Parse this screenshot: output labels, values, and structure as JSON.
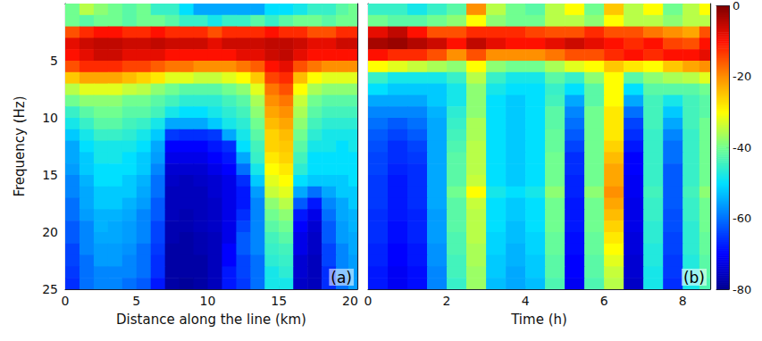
{
  "chart_data": [
    {
      "type": "heatmap",
      "panel_label": "(a)",
      "xlabel": "Distance along the line (km)",
      "ylabel": "Frequency (Hz)",
      "xlim": [
        0,
        20.5
      ],
      "xticks": [
        0,
        5,
        10,
        15,
        20
      ],
      "ylim": [
        0,
        25
      ],
      "yticks": [
        5,
        10,
        15,
        20,
        25
      ],
      "x": [
        0.5,
        1.5,
        2.5,
        3.5,
        4.5,
        5.5,
        6.5,
        7.5,
        8.5,
        9.5,
        10.5,
        11.5,
        12.5,
        13.5,
        14.5,
        15.5,
        16.5,
        17.5,
        18.5,
        19.5,
        20.25
      ],
      "y": [
        0.5,
        1.5,
        2.5,
        3.5,
        4.5,
        5.5,
        6.5,
        7.5,
        8.5,
        9.5,
        10.5,
        11.5,
        12.5,
        13.5,
        14.5,
        15.5,
        16.5,
        17.5,
        18.5,
        19.5,
        20.5,
        21.5,
        22.5,
        23.5,
        24.5
      ],
      "z": [
        [
          -40,
          -35,
          -38,
          -40,
          -42,
          -40,
          -45,
          -45,
          -50,
          -55,
          -55,
          -55,
          -55,
          -55,
          -50,
          -50,
          -48,
          -45,
          -45,
          -42,
          -40
        ],
        [
          -40,
          -42,
          -40,
          -40,
          -42,
          -40,
          -40,
          -42,
          -45,
          -45,
          -48,
          -45,
          -45,
          -42,
          -45,
          -42,
          -40,
          -40,
          -42,
          -40,
          -40
        ],
        [
          -15,
          -12,
          -10,
          -10,
          -12,
          -12,
          -10,
          -12,
          -12,
          -12,
          -15,
          -12,
          -12,
          -12,
          -10,
          -12,
          -12,
          -15,
          -15,
          -12,
          -12
        ],
        [
          -8,
          -6,
          -5,
          -5,
          -6,
          -6,
          -5,
          -6,
          -6,
          -6,
          -8,
          -6,
          -6,
          -6,
          -5,
          -5,
          -6,
          -8,
          -8,
          -6,
          -6
        ],
        [
          -10,
          -8,
          -6,
          -6,
          -8,
          -8,
          -8,
          -10,
          -10,
          -10,
          -10,
          -10,
          -8,
          -8,
          -6,
          -5,
          -8,
          -10,
          -10,
          -10,
          -10
        ],
        [
          -15,
          -12,
          -12,
          -12,
          -14,
          -14,
          -16,
          -18,
          -18,
          -20,
          -20,
          -20,
          -18,
          -16,
          -10,
          -8,
          -15,
          -18,
          -20,
          -20,
          -20
        ],
        [
          -25,
          -22,
          -22,
          -22,
          -24,
          -26,
          -28,
          -32,
          -32,
          -34,
          -34,
          -32,
          -30,
          -25,
          -14,
          -12,
          -24,
          -30,
          -32,
          -32,
          -32
        ],
        [
          -35,
          -32,
          -32,
          -32,
          -34,
          -35,
          -38,
          -40,
          -42,
          -42,
          -42,
          -40,
          -38,
          -32,
          -18,
          -15,
          -30,
          -36,
          -38,
          -38,
          -38
        ],
        [
          -40,
          -38,
          -38,
          -38,
          -40,
          -40,
          -42,
          -44,
          -46,
          -46,
          -46,
          -44,
          -42,
          -36,
          -20,
          -18,
          -34,
          -40,
          -42,
          -42,
          -42
        ],
        [
          -45,
          -42,
          -40,
          -40,
          -42,
          -42,
          -44,
          -48,
          -50,
          -50,
          -48,
          -46,
          -44,
          -38,
          -22,
          -20,
          -36,
          -42,
          -44,
          -44,
          -44
        ],
        [
          -48,
          -45,
          -42,
          -42,
          -44,
          -45,
          -48,
          -55,
          -55,
          -55,
          -52,
          -48,
          -46,
          -40,
          -24,
          -22,
          -38,
          -44,
          -46,
          -46,
          -46
        ],
        [
          -52,
          -48,
          -45,
          -45,
          -46,
          -48,
          -52,
          -65,
          -66,
          -66,
          -65,
          -55,
          -48,
          -42,
          -26,
          -24,
          -40,
          -46,
          -48,
          -48,
          -48
        ],
        [
          -55,
          -50,
          -48,
          -48,
          -48,
          -50,
          -55,
          -70,
          -70,
          -70,
          -68,
          -66,
          -50,
          -44,
          -26,
          -25,
          -42,
          -48,
          -48,
          -50,
          -48
        ],
        [
          -55,
          -52,
          -48,
          -48,
          -50,
          -52,
          -56,
          -72,
          -72,
          -72,
          -70,
          -68,
          -55,
          -45,
          -28,
          -26,
          -44,
          -50,
          -50,
          -50,
          -50
        ],
        [
          -56,
          -52,
          -50,
          -50,
          -50,
          -52,
          -58,
          -74,
          -74,
          -74,
          -72,
          -70,
          -60,
          -48,
          -30,
          -28,
          -46,
          -50,
          -50,
          -50,
          -50
        ],
        [
          -58,
          -54,
          -50,
          -50,
          -52,
          -54,
          -60,
          -75,
          -76,
          -75,
          -74,
          -72,
          -66,
          -52,
          -32,
          -30,
          -50,
          -52,
          -52,
          -52,
          -50
        ],
        [
          -58,
          -55,
          -52,
          -52,
          -52,
          -55,
          -60,
          -76,
          -76,
          -76,
          -74,
          -72,
          -68,
          -56,
          -34,
          -32,
          -55,
          -60,
          -55,
          -52,
          -52
        ],
        [
          -60,
          -55,
          -52,
          -52,
          -54,
          -56,
          -62,
          -76,
          -76,
          -76,
          -75,
          -72,
          -68,
          -58,
          -38,
          -35,
          -62,
          -68,
          -58,
          -55,
          -52
        ],
        [
          -60,
          -56,
          -54,
          -54,
          -55,
          -58,
          -62,
          -76,
          -77,
          -76,
          -75,
          -72,
          -66,
          -58,
          -40,
          -38,
          -68,
          -72,
          -60,
          -55,
          -54
        ],
        [
          -62,
          -58,
          -54,
          -55,
          -56,
          -58,
          -64,
          -77,
          -77,
          -76,
          -75,
          -72,
          -64,
          -58,
          -42,
          -40,
          -70,
          -74,
          -62,
          -56,
          -54
        ],
        [
          -62,
          -58,
          -55,
          -55,
          -56,
          -58,
          -64,
          -77,
          -78,
          -77,
          -76,
          -72,
          -62,
          -58,
          -44,
          -42,
          -72,
          -75,
          -62,
          -56,
          -55
        ],
        [
          -64,
          -58,
          -56,
          -56,
          -57,
          -60,
          -65,
          -78,
          -78,
          -77,
          -76,
          -70,
          -62,
          -58,
          -45,
          -44,
          -72,
          -75,
          -64,
          -58,
          -55
        ],
        [
          -64,
          -60,
          -56,
          -56,
          -58,
          -60,
          -66,
          -78,
          -78,
          -78,
          -76,
          -70,
          -64,
          -60,
          -46,
          -45,
          -74,
          -76,
          -64,
          -58,
          -56
        ],
        [
          -65,
          -60,
          -58,
          -58,
          -58,
          -60,
          -66,
          -78,
          -78,
          -78,
          -76,
          -68,
          -64,
          -60,
          -48,
          -46,
          -74,
          -76,
          -66,
          -58,
          -56
        ],
        [
          -66,
          -60,
          -58,
          -58,
          -60,
          -62,
          -68,
          -78,
          -79,
          -78,
          -76,
          -68,
          -65,
          -60,
          -48,
          -48,
          -75,
          -76,
          -66,
          -60,
          -56
        ]
      ]
    },
    {
      "type": "heatmap",
      "panel_label": "(b)",
      "xlabel": "Time (h)",
      "tick_labels": "x",
      "xlim": [
        0,
        8.7
      ],
      "xticks": [
        0,
        2,
        4,
        6,
        8
      ],
      "ylim": [
        0,
        25
      ],
      "yticks": [
        5,
        10,
        15,
        20,
        25
      ],
      "x": [
        0.25,
        0.75,
        1.25,
        1.75,
        2.25,
        2.75,
        3.25,
        3.75,
        4.25,
        4.75,
        5.25,
        5.75,
        6.25,
        6.75,
        7.25,
        7.75,
        8.25,
        8.6
      ],
      "y": [
        0.5,
        1.5,
        2.5,
        3.5,
        4.5,
        5.5,
        6.5,
        7.5,
        8.5,
        9.5,
        10.5,
        11.5,
        12.5,
        13.5,
        14.5,
        15.5,
        16.5,
        17.5,
        18.5,
        19.5,
        20.5,
        21.5,
        22.5,
        23.5,
        24.5
      ],
      "z": [
        [
          -45,
          -45,
          -48,
          -45,
          -42,
          -20,
          -35,
          -40,
          -42,
          -35,
          -30,
          -40,
          -25,
          -35,
          -30,
          -40,
          -35,
          -30
        ],
        [
          -40,
          -42,
          -42,
          -40,
          -38,
          -30,
          -38,
          -40,
          -40,
          -35,
          -35,
          -38,
          -30,
          -35,
          -35,
          -38,
          -35,
          -35
        ],
        [
          -8,
          -5,
          -10,
          -15,
          -15,
          -12,
          -12,
          -12,
          -14,
          -15,
          -15,
          -12,
          -15,
          -15,
          -18,
          -20,
          -22,
          -15
        ],
        [
          -3,
          -2,
          -4,
          -6,
          -10,
          -5,
          -8,
          -10,
          -10,
          -8,
          -6,
          -8,
          -10,
          -12,
          -10,
          -14,
          -15,
          -10
        ],
        [
          -10,
          -12,
          -12,
          -15,
          -20,
          -15,
          -20,
          -20,
          -20,
          -18,
          -15,
          -15,
          -12,
          -10,
          -12,
          -10,
          -10,
          -8
        ],
        [
          -30,
          -32,
          -34,
          -36,
          -38,
          -30,
          -38,
          -40,
          -40,
          -36,
          -32,
          -30,
          -25,
          -28,
          -30,
          -25,
          -22,
          -20
        ],
        [
          -45,
          -48,
          -48,
          -48,
          -45,
          -35,
          -45,
          -48,
          -48,
          -42,
          -45,
          -38,
          -30,
          -42,
          -38,
          -36,
          -35,
          -32
        ],
        [
          -50,
          -52,
          -52,
          -52,
          -48,
          -38,
          -48,
          -50,
          -50,
          -45,
          -50,
          -42,
          -30,
          -50,
          -42,
          -42,
          -42,
          -40
        ],
        [
          -55,
          -55,
          -55,
          -52,
          -48,
          -38,
          -50,
          -52,
          -50,
          -44,
          -55,
          -42,
          -30,
          -55,
          -44,
          -48,
          -44,
          -42
        ],
        [
          -58,
          -58,
          -58,
          -54,
          -46,
          -38,
          -50,
          -52,
          -50,
          -42,
          -58,
          -40,
          -28,
          -60,
          -44,
          -52,
          -44,
          -42
        ],
        [
          -60,
          -62,
          -60,
          -55,
          -45,
          -36,
          -50,
          -52,
          -50,
          -42,
          -60,
          -40,
          -28,
          -64,
          -44,
          -55,
          -44,
          -40
        ],
        [
          -62,
          -64,
          -62,
          -55,
          -44,
          -36,
          -50,
          -52,
          -50,
          -41,
          -62,
          -40,
          -28,
          -66,
          -45,
          -58,
          -45,
          -40
        ],
        [
          -63,
          -66,
          -64,
          -55,
          -43,
          -35,
          -50,
          -52,
          -50,
          -41,
          -64,
          -40,
          -26,
          -68,
          -45,
          -60,
          -45,
          -40
        ],
        [
          -64,
          -66,
          -65,
          -55,
          -42,
          -35,
          -50,
          -52,
          -50,
          -40,
          -66,
          -40,
          -24,
          -70,
          -45,
          -60,
          -45,
          -40
        ],
        [
          -64,
          -67,
          -66,
          -55,
          -42,
          -35,
          -50,
          -52,
          -50,
          -40,
          -66,
          -40,
          -22,
          -70,
          -45,
          -62,
          -45,
          -40
        ],
        [
          -65,
          -68,
          -66,
          -55,
          -42,
          -34,
          -50,
          -52,
          -50,
          -40,
          -67,
          -40,
          -22,
          -71,
          -45,
          -62,
          -45,
          -40
        ],
        [
          -65,
          -68,
          -66,
          -55,
          -40,
          -30,
          -48,
          -50,
          -48,
          -38,
          -67,
          -38,
          -20,
          -71,
          -44,
          -62,
          -44,
          -38
        ],
        [
          -65,
          -68,
          -66,
          -55,
          -42,
          -34,
          -50,
          -52,
          -50,
          -40,
          -68,
          -40,
          -22,
          -72,
          -45,
          -62,
          -45,
          -40
        ],
        [
          -66,
          -68,
          -67,
          -56,
          -42,
          -35,
          -50,
          -52,
          -50,
          -40,
          -68,
          -40,
          -24,
          -72,
          -45,
          -63,
          -45,
          -40
        ],
        [
          -66,
          -69,
          -67,
          -56,
          -42,
          -35,
          -50,
          -53,
          -50,
          -40,
          -68,
          -40,
          -26,
          -72,
          -46,
          -63,
          -46,
          -40
        ],
        [
          -66,
          -69,
          -67,
          -56,
          -43,
          -35,
          -51,
          -53,
          -51,
          -41,
          -69,
          -41,
          -28,
          -73,
          -46,
          -64,
          -46,
          -41
        ],
        [
          -67,
          -70,
          -68,
          -57,
          -43,
          -36,
          -51,
          -54,
          -51,
          -41,
          -69,
          -41,
          -30,
          -73,
          -47,
          -64,
          -46,
          -41
        ],
        [
          -67,
          -70,
          -68,
          -57,
          -44,
          -36,
          -52,
          -54,
          -52,
          -42,
          -70,
          -42,
          -32,
          -74,
          -47,
          -65,
          -47,
          -42
        ],
        [
          -68,
          -71,
          -69,
          -58,
          -44,
          -37,
          -52,
          -55,
          -52,
          -42,
          -70,
          -42,
          -34,
          -74,
          -48,
          -65,
          -47,
          -42
        ],
        [
          -68,
          -71,
          -69,
          -58,
          -45,
          -37,
          -53,
          -55,
          -53,
          -43,
          -71,
          -43,
          -35,
          -75,
          -48,
          -66,
          -48,
          -43
        ]
      ],
      "colorbar": {
        "range": [
          -80,
          0
        ],
        "ticks": [
          0,
          -20,
          -40,
          -60,
          -80
        ]
      }
    }
  ]
}
